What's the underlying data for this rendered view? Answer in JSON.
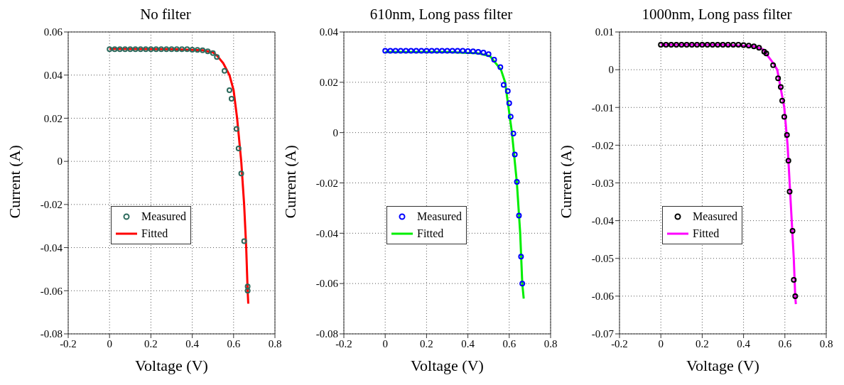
{
  "chart_data": [
    {
      "type": "line",
      "title": "No filter",
      "xlabel": "Voltage (V)",
      "ylabel": "Current (A)",
      "xlim": [
        -0.2,
        0.8
      ],
      "xticks": [
        -0.2,
        0,
        0.2,
        0.4,
        0.6,
        0.8
      ],
      "ylim": [
        -0.08,
        0.06
      ],
      "yticks": [
        -0.08,
        -0.06,
        -0.04,
        -0.02,
        0,
        0.02,
        0.04,
        0.06
      ],
      "grid": true,
      "legend": "left",
      "series": [
        {
          "name": "Measured",
          "type": "scatter",
          "marker": "circle",
          "color": "#2e6b5e",
          "x": [
            0,
            0.025,
            0.05,
            0.075,
            0.1,
            0.125,
            0.15,
            0.175,
            0.2,
            0.225,
            0.25,
            0.275,
            0.3,
            0.325,
            0.35,
            0.375,
            0.4,
            0.425,
            0.45,
            0.475,
            0.5,
            0.519,
            0.556,
            0.58,
            0.59,
            0.614,
            0.624,
            0.637,
            0.651,
            0.668,
            0.668
          ],
          "values": [
            0.052,
            0.052,
            0.052,
            0.052,
            0.052,
            0.052,
            0.052,
            0.052,
            0.052,
            0.052,
            0.052,
            0.052,
            0.052,
            0.052,
            0.052,
            0.052,
            0.0518,
            0.0517,
            0.0515,
            0.051,
            0.0502,
            0.0484,
            0.042,
            0.033,
            0.029,
            0.015,
            0.006,
            -0.0056,
            -0.037,
            -0.058,
            -0.06
          ]
        },
        {
          "name": "Fitted",
          "color": "#ff0000",
          "x": [
            0,
            0.3,
            0.45,
            0.5,
            0.52,
            0.55,
            0.58,
            0.6,
            0.617,
            0.637,
            0.651,
            0.661,
            0.668,
            0.671
          ],
          "values": [
            0.0522,
            0.052,
            0.0515,
            0.0505,
            0.049,
            0.0455,
            0.04,
            0.033,
            0.02,
            0,
            -0.02,
            -0.04,
            -0.06,
            -0.066
          ]
        }
      ]
    },
    {
      "type": "line",
      "title": "610nm, Long pass filter",
      "xlabel": "Voltage (V)",
      "ylabel": "Current (A)",
      "xlim": [
        -0.2,
        0.8
      ],
      "xticks": [
        -0.2,
        0,
        0.2,
        0.4,
        0.6,
        0.8
      ],
      "ylim": [
        -0.08,
        0.04
      ],
      "yticks": [
        -0.08,
        -0.06,
        -0.04,
        -0.02,
        0,
        0.02,
        0.04
      ],
      "grid": true,
      "legend": "left",
      "series": [
        {
          "name": "Measured",
          "type": "scatter",
          "marker": "circle",
          "color": "#0000ff",
          "x": [
            0,
            0.025,
            0.05,
            0.075,
            0.1,
            0.125,
            0.15,
            0.175,
            0.2,
            0.225,
            0.25,
            0.275,
            0.3,
            0.325,
            0.35,
            0.375,
            0.4,
            0.425,
            0.45,
            0.475,
            0.5,
            0.527,
            0.557,
            0.573,
            0.593,
            0.6,
            0.607,
            0.62,
            0.627,
            0.637,
            0.647,
            0.657,
            0.663
          ],
          "values": [
            0.0325,
            0.0325,
            0.0325,
            0.0325,
            0.0325,
            0.0325,
            0.0325,
            0.0325,
            0.0325,
            0.0325,
            0.0325,
            0.0325,
            0.0325,
            0.0325,
            0.0325,
            0.0325,
            0.0324,
            0.0323,
            0.0321,
            0.0318,
            0.0312,
            0.029,
            0.026,
            0.019,
            0.0165,
            0.0117,
            0.0063,
            -0.0004,
            -0.0087,
            -0.0196,
            -0.033,
            -0.0493,
            -0.06
          ]
        },
        {
          "name": "Fitted",
          "color": "#00ee00",
          "x": [
            0,
            0.3,
            0.45,
            0.507,
            0.56,
            0.58,
            0.613,
            0.637,
            0.653,
            0.663,
            0.67
          ],
          "values": [
            0.032,
            0.032,
            0.0315,
            0.0304,
            0.025,
            0.02,
            0,
            -0.02,
            -0.04,
            -0.06,
            -0.066
          ]
        }
      ]
    },
    {
      "type": "line",
      "title": "1000nm, Long pass filter",
      "xlabel": "Voltage (V)",
      "ylabel": "Current (A)",
      "xlim": [
        -0.2,
        0.8
      ],
      "xticks": [
        -0.2,
        0,
        0.2,
        0.4,
        0.6,
        0.8
      ],
      "ylim": [
        -0.07,
        0.01
      ],
      "yticks": [
        -0.07,
        -0.06,
        -0.05,
        -0.04,
        -0.03,
        -0.02,
        -0.01,
        0,
        0.01
      ],
      "grid": true,
      "legend": "left",
      "series": [
        {
          "name": "Measured",
          "type": "scatter",
          "marker": "circle",
          "color": "#000000",
          "x": [
            0,
            0.025,
            0.05,
            0.075,
            0.1,
            0.125,
            0.15,
            0.175,
            0.2,
            0.225,
            0.25,
            0.275,
            0.3,
            0.325,
            0.35,
            0.375,
            0.4,
            0.425,
            0.45,
            0.475,
            0.5,
            0.51,
            0.543,
            0.567,
            0.58,
            0.587,
            0.597,
            0.61,
            0.617,
            0.623,
            0.637,
            0.643,
            0.65
          ],
          "values": [
            0.0066,
            0.0066,
            0.0066,
            0.0066,
            0.0066,
            0.0066,
            0.0066,
            0.0066,
            0.0066,
            0.0066,
            0.0066,
            0.0066,
            0.0066,
            0.0066,
            0.0066,
            0.0066,
            0.0065,
            0.0064,
            0.0062,
            0.0058,
            0.0048,
            0.0043,
            0.0012,
            -0.0023,
            -0.0046,
            -0.0082,
            -0.0125,
            -0.0173,
            -0.0241,
            -0.0323,
            -0.0427,
            -0.0557,
            -0.06
          ]
        },
        {
          "name": "Fitted",
          "color": "#ff00ff",
          "x": [
            0,
            0.3,
            0.45,
            0.493,
            0.543,
            0.563,
            0.597,
            0.613,
            0.623,
            0.633,
            0.643,
            0.65,
            0.653
          ],
          "values": [
            0.0066,
            0.0066,
            0.0062,
            0.0054,
            0.0018,
            0,
            -0.01,
            -0.02,
            -0.03,
            -0.04,
            -0.05,
            -0.06,
            -0.0621
          ]
        }
      ]
    }
  ]
}
